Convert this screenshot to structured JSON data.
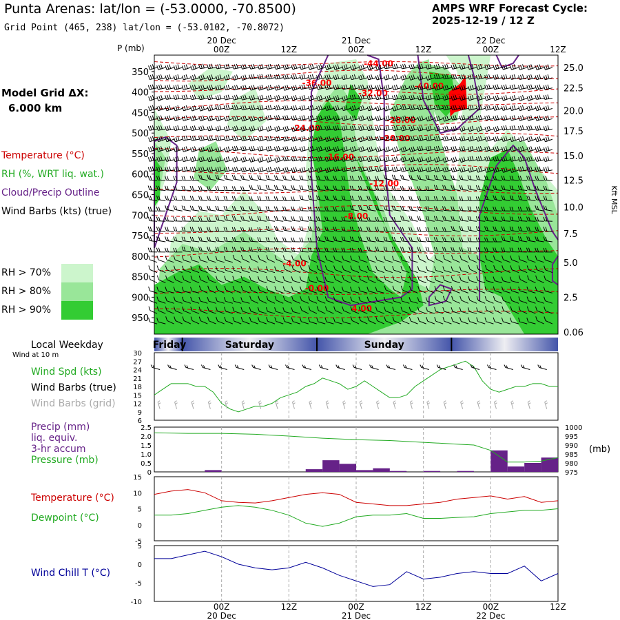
{
  "header": {
    "title": "Punta Arenas:  lat/lon = (-53.0000, -70.8500)",
    "grid_point": "Grid Point (465, 238) lat/lon = (-53.0102, -70.8072)",
    "model": "AMPS WRF Forecast Cycle:",
    "cycle": "2025-12-19 / 12  Z"
  },
  "left_panel": {
    "model_grid_label": "Model Grid ΔX:",
    "model_grid_value": "6.000 km",
    "legend": [
      {
        "text": "Temperature (°C)",
        "color": "#cc0000"
      },
      {
        "text": "RH (%, WRT liq. wat.)",
        "color": "#22aa22"
      },
      {
        "text": "Cloud/Precip Outline",
        "color": "#662288"
      },
      {
        "text": "Wind Barbs (kts) (true)",
        "color": "#000000"
      }
    ],
    "rh_legend": [
      {
        "text": "RH > 70%",
        "color": "#ccf5cc"
      },
      {
        "text": "RH > 80%",
        "color": "#99e699"
      },
      {
        "text": "RH > 90%",
        "color": "#33cc33"
      }
    ],
    "weekday_title": "Local Weekday",
    "wind_10m": "Wind at 10 m",
    "wind_labels": [
      {
        "text": "Wind Spd (kts)",
        "color": "#22aa22"
      },
      {
        "text": "Wind Barbs (true)",
        "color": "#000000"
      },
      {
        "text": "Wind Barbs (grid)",
        "color": "#aaaaaa"
      }
    ],
    "precip_labels": [
      {
        "text": "Precip (mm)",
        "color": "#662288"
      },
      {
        "text": "liq. equiv.",
        "color": "#662288"
      },
      {
        "text": "3-hr accum",
        "color": "#662288"
      },
      {
        "text": "Pressure (mb)",
        "color": "#22aa22"
      }
    ],
    "temp_labels": [
      {
        "text": "Temperature (°C)",
        "color": "#cc0000"
      },
      {
        "text": "Dewpoint (°C)",
        "color": "#22aa22"
      }
    ],
    "windchill_label": {
      "text": "Wind Chill T (°C)",
      "color": "#000099"
    }
  },
  "colors": {
    "rh70": "#ccf5cc",
    "rh80": "#99e699",
    "rh90": "#33cc33",
    "rh_high": "#ff0000",
    "temp": "#cc0000",
    "cloud": "#662288",
    "dew": "#22aa22",
    "chill": "#000099",
    "precip": "#662288",
    "pressure": "#22aa22"
  },
  "chart_data": [
    {
      "type": "heatmap",
      "name_panel": "cross-section",
      "x_top_labels": [
        {
          "hour": 12,
          "label": "00Z",
          "date": "20 Dec"
        },
        {
          "hour": 24,
          "label": "12Z",
          "date": ""
        },
        {
          "hour": 36,
          "label": "00Z",
          "date": "21 Dec"
        },
        {
          "hour": 48,
          "label": "12Z",
          "date": ""
        },
        {
          "hour": 60,
          "label": "00Z",
          "date": "22 Dec"
        },
        {
          "hour": 72,
          "label": "12Z",
          "date": ""
        }
      ],
      "ylabel": "P (mb)",
      "pressure_ticks": [
        350,
        400,
        450,
        500,
        550,
        600,
        650,
        700,
        750,
        800,
        850,
        900,
        950
      ],
      "ylim_mb": [
        310,
        990
      ],
      "height_ticks_kft": [
        "25.0",
        "22.5",
        "20.0",
        "17.5",
        "15.0",
        "12.5",
        "10.0",
        "7.5",
        "5.0",
        "2.5",
        "0.06"
      ],
      "right_label": "Kft MSL",
      "temperature_labels": [
        "-44.00",
        "-40.00",
        "-36.00",
        "-32.00",
        "-28.00",
        "-24.00",
        "-20.00",
        "-16.00",
        "-12.00",
        "-8.00",
        "-4.00",
        "-0.00",
        "4.00"
      ]
    },
    {
      "type": "line",
      "name_panel": "weekday",
      "days": [
        "Friday",
        "Saturday",
        "Sunday"
      ]
    },
    {
      "type": "line",
      "name_panel": "wind",
      "x_hours": [
        0,
        1.5,
        3,
        4.5,
        6,
        7.5,
        9,
        10.5,
        12,
        13.5,
        15,
        16.5,
        18,
        19.5,
        21,
        22.5,
        24,
        25.5,
        27,
        28.5,
        30,
        31.5,
        33,
        34.5,
        36,
        37.5,
        39,
        40.5,
        42,
        43.5,
        45,
        46.5,
        48,
        49.5,
        51,
        52.5,
        54,
        55.5,
        57,
        58.5,
        60,
        61.5,
        63,
        64.5,
        66,
        67.5,
        69,
        70.5,
        72
      ],
      "wind_speed_kts": [
        15,
        17,
        19,
        19,
        19,
        18,
        18,
        16,
        12,
        10,
        9,
        10,
        11,
        11,
        12,
        14,
        15,
        16,
        18,
        19,
        21,
        20,
        19,
        17,
        18,
        20,
        18,
        16,
        14,
        14,
        15,
        18,
        20,
        22,
        24,
        25,
        26,
        27,
        25,
        20,
        17,
        16,
        17,
        18,
        18,
        19,
        19,
        18,
        18
      ],
      "ylim": [
        6,
        30
      ],
      "yticks": [
        6,
        9,
        12,
        15,
        18,
        21,
        24,
        27,
        30
      ]
    },
    {
      "type": "bar",
      "name_panel": "precip-pressure",
      "precip_mm": [
        {
          "start": 9,
          "end": 12,
          "value": 0.1
        },
        {
          "start": 27,
          "end": 30,
          "value": 0.15
        },
        {
          "start": 30,
          "end": 33,
          "value": 0.65
        },
        {
          "start": 33,
          "end": 36,
          "value": 0.45
        },
        {
          "start": 36,
          "end": 39,
          "value": 0.1
        },
        {
          "start": 39,
          "end": 42,
          "value": 0.2
        },
        {
          "start": 42,
          "end": 45,
          "value": 0.05
        },
        {
          "start": 48,
          "end": 51,
          "value": 0.05
        },
        {
          "start": 54,
          "end": 57,
          "value": 0.05
        },
        {
          "start": 60,
          "end": 63,
          "value": 1.2
        },
        {
          "start": 63,
          "end": 66,
          "value": 0.3
        },
        {
          "start": 66,
          "end": 69,
          "value": 0.5
        },
        {
          "start": 69,
          "end": 72,
          "value": 0.8
        }
      ],
      "pressure_x_hours": [
        0,
        6,
        12,
        18,
        24,
        30,
        36,
        42,
        48,
        54,
        57,
        60,
        63,
        66,
        69,
        72
      ],
      "pressure_mb": [
        996.8,
        996.5,
        996.5,
        996,
        995,
        993.8,
        993,
        992.5,
        991.5,
        990.5,
        990,
        987,
        980.5,
        980.5,
        981,
        983
      ],
      "precip_ylim": [
        0,
        2.5
      ],
      "precip_yticks": [
        "0",
        "0.5",
        "1.0",
        "1.5",
        "2.0",
        "2.5"
      ],
      "pressure_ylim": [
        975,
        1000
      ],
      "pressure_yticks": [
        975,
        980,
        985,
        990,
        995,
        1000
      ],
      "pressure_unit": "(mb)"
    },
    {
      "type": "line",
      "name_panel": "temp-dew",
      "x_hours": [
        0,
        3,
        6,
        9,
        12,
        15,
        18,
        21,
        24,
        27,
        30,
        33,
        36,
        39,
        42,
        45,
        48,
        51,
        54,
        57,
        60,
        63,
        66,
        69,
        72
      ],
      "temperature_c": [
        9.5,
        10.5,
        11,
        10,
        7.5,
        7,
        6.8,
        7.5,
        8.5,
        9.5,
        10,
        9.5,
        7,
        6.5,
        6,
        6,
        6.5,
        7,
        8,
        8.5,
        9,
        8,
        8.8,
        7,
        7.5
      ],
      "dewpoint_c": [
        3,
        3,
        3.5,
        4.5,
        5.5,
        6,
        5.5,
        4.5,
        3,
        0.5,
        -0.5,
        0.5,
        2.5,
        3,
        3,
        3.5,
        2,
        2,
        2.3,
        2.5,
        3.5,
        4,
        4.5,
        4.5,
        5
      ],
      "ylim": [
        -5,
        15
      ],
      "yticks": [
        -5,
        0,
        5,
        10,
        15
      ]
    },
    {
      "type": "line",
      "name_panel": "wind-chill",
      "x_hours": [
        0,
        3,
        6,
        9,
        12,
        15,
        18,
        21,
        24,
        27,
        30,
        33,
        36,
        39,
        42,
        45,
        48,
        51,
        54,
        57,
        60,
        63,
        66,
        69,
        72
      ],
      "wind_chill_c": [
        1.5,
        1.5,
        2.5,
        3.5,
        2,
        0,
        -1,
        -1.5,
        -1,
        0.5,
        -1,
        -3,
        -4.5,
        -6,
        -5.5,
        -2,
        -4,
        -3.5,
        -2.5,
        -2,
        -2.5,
        -2.5,
        -0.5,
        -4.5,
        -2.5
      ],
      "ylim": [
        -10,
        5
      ],
      "yticks": [
        -10,
        -5,
        0,
        5
      ],
      "x_bottom_labels": [
        {
          "hour": 12,
          "label": "00Z",
          "date": "20 Dec"
        },
        {
          "hour": 24,
          "label": "12Z",
          "date": ""
        },
        {
          "hour": 36,
          "label": "00Z",
          "date": "21 Dec"
        },
        {
          "hour": 48,
          "label": "12Z",
          "date": ""
        },
        {
          "hour": 60,
          "label": "00Z",
          "date": "22 Dec"
        },
        {
          "hour": 72,
          "label": "12Z",
          "date": ""
        }
      ]
    }
  ]
}
